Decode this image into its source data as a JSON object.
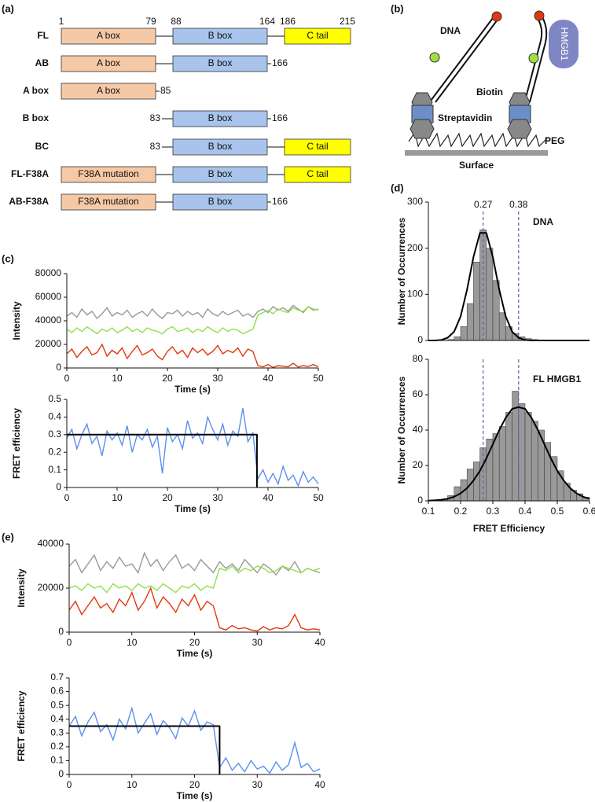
{
  "panel_labels": [
    "(a)",
    "(b)",
    "(c)",
    "(d)",
    "(e)"
  ],
  "domain_diagram": {
    "rows": [
      {
        "label": "FL",
        "a": "A box",
        "b": "B box",
        "c": "C tail",
        "top": [
          "1",
          "79",
          "88",
          "164",
          "186",
          "215"
        ]
      },
      {
        "label": "AB",
        "a": "A box",
        "b": "B box",
        "right": "166"
      },
      {
        "label": "A box",
        "a": "A box",
        "right": "85"
      },
      {
        "label": "B box",
        "left": "83",
        "b": "B box",
        "right": "166"
      },
      {
        "label": "BC",
        "left": "83",
        "b": "B box",
        "c": "C tail"
      },
      {
        "label": "FL-F38A",
        "a": "F38A mutation",
        "b": "B box",
        "c": "C tail"
      },
      {
        "label": "AB-F38A",
        "a": "F38A mutation",
        "b": "B box",
        "right": "166"
      }
    ]
  },
  "schematic": {
    "dna": "DNA",
    "protein": "HMGB1",
    "biotin": "Biotin",
    "streptavidin": "Streptavidin",
    "peg": "PEG",
    "surface": "Surface"
  },
  "chart_data": [
    {
      "type": "line",
      "ylabel": "Intensity",
      "xlabel": "Time (s)",
      "xlim": [
        0,
        50
      ],
      "xticks": [
        0,
        10,
        20,
        30,
        40,
        50
      ],
      "ylim": [
        0,
        80000
      ],
      "yticks": [
        0,
        20000,
        40000,
        60000,
        80000
      ],
      "x": [
        0,
        1,
        2,
        3,
        4,
        5,
        6,
        7,
        8,
        9,
        10,
        11,
        12,
        13,
        14,
        15,
        16,
        17,
        18,
        19,
        20,
        21,
        22,
        23,
        24,
        25,
        26,
        27,
        28,
        29,
        30,
        31,
        32,
        33,
        34,
        35,
        36,
        37,
        38,
        39,
        40,
        41,
        42,
        43,
        44,
        45,
        46,
        47,
        48,
        49,
        50
      ],
      "series": [
        {
          "color": "#999999",
          "values": [
            44000,
            47000,
            43000,
            50000,
            45000,
            48000,
            42000,
            46000,
            51000,
            44000,
            47000,
            45000,
            49000,
            43000,
            46000,
            48000,
            44000,
            50000,
            45000,
            42000,
            47000,
            46000,
            49000,
            44000,
            48000,
            45000,
            47000,
            43000,
            50000,
            46000,
            44000,
            48000,
            45000,
            47000,
            49000,
            44000,
            46000,
            43000,
            48000,
            50000,
            47000,
            52000,
            49000,
            51000,
            48000,
            53000,
            50000,
            47000,
            52000,
            49000,
            50000
          ]
        },
        {
          "color": "#8ee04a",
          "values": [
            33000,
            30000,
            34000,
            31000,
            35000,
            32000,
            29000,
            33000,
            31000,
            34000,
            30000,
            32000,
            35000,
            31000,
            33000,
            30000,
            34000,
            32000,
            31000,
            29000,
            33000,
            35000,
            31000,
            32000,
            34000,
            30000,
            33000,
            31000,
            35000,
            32000,
            30000,
            34000,
            31000,
            33000,
            32000,
            29000,
            31000,
            33000,
            45000,
            47000,
            49000,
            46000,
            50000,
            48000,
            47000,
            51000,
            49000,
            48000,
            52000,
            50000,
            49000
          ]
        },
        {
          "color": "#e2380e",
          "values": [
            12000,
            16000,
            9000,
            14000,
            18000,
            11000,
            13000,
            20000,
            10000,
            15000,
            12000,
            17000,
            8000,
            14000,
            19000,
            11000,
            13000,
            16000,
            10000,
            7000,
            14000,
            18000,
            12000,
            15000,
            9000,
            17000,
            13000,
            16000,
            11000,
            14000,
            19000,
            12000,
            15000,
            13000,
            17000,
            10000,
            16000,
            14000,
            2000,
            1000,
            3000,
            500,
            2000,
            1500,
            1000,
            4000,
            800,
            2000,
            1200,
            3000,
            1000
          ]
        }
      ]
    },
    {
      "type": "line",
      "ylabel": "FRET efficiency",
      "xlabel": "Time (s)",
      "xlim": [
        0,
        50
      ],
      "xticks": [
        0,
        10,
        20,
        30,
        40,
        50
      ],
      "ylim": [
        0,
        0.5
      ],
      "yticks": [
        0,
        0.1,
        0.2,
        0.3,
        0.4,
        0.5
      ],
      "x": [
        0,
        1,
        2,
        3,
        4,
        5,
        6,
        7,
        8,
        9,
        10,
        11,
        12,
        13,
        14,
        15,
        16,
        17,
        18,
        19,
        20,
        21,
        22,
        23,
        24,
        25,
        26,
        27,
        28,
        29,
        30,
        31,
        32,
        33,
        34,
        35,
        36,
        37,
        38,
        39,
        40,
        41,
        42,
        43,
        44,
        45,
        46,
        47,
        48,
        49,
        50
      ],
      "series": [
        {
          "color": "#5b8ff0",
          "values": [
            0.28,
            0.33,
            0.22,
            0.3,
            0.36,
            0.25,
            0.29,
            0.18,
            0.32,
            0.27,
            0.31,
            0.24,
            0.35,
            0.2,
            0.3,
            0.27,
            0.33,
            0.23,
            0.29,
            0.08,
            0.34,
            0.26,
            0.3,
            0.22,
            0.38,
            0.28,
            0.31,
            0.25,
            0.4,
            0.33,
            0.27,
            0.36,
            0.24,
            0.32,
            0.29,
            0.45,
            0.26,
            0.31,
            0.05,
            0.1,
            0.03,
            0.08,
            0.02,
            0.12,
            0.04,
            0.07,
            0.01,
            0.09,
            0.03,
            0.06,
            0.02
          ]
        }
      ],
      "fit": {
        "color": "#000000",
        "x": [
          0,
          37.8,
          37.8
        ],
        "values": [
          0.3,
          0.3,
          0
        ]
      }
    },
    {
      "type": "histogram",
      "title": "DNA",
      "ylabel": "Number of Occurrences",
      "xlim": [
        0.1,
        0.6
      ],
      "ylim": [
        0,
        300
      ],
      "yticks": [
        0,
        100,
        200,
        300
      ],
      "color": "#999999",
      "bins": [
        0.1,
        0.12,
        0.14,
        0.16,
        0.18,
        0.2,
        0.22,
        0.24,
        0.26,
        0.28,
        0.3,
        0.32,
        0.34,
        0.36,
        0.38,
        0.4,
        0.42,
        0.44,
        0.46,
        0.48,
        0.5,
        0.52,
        0.54,
        0.56,
        0.58,
        0.6
      ],
      "counts": [
        0,
        0,
        0,
        2,
        8,
        30,
        80,
        170,
        240,
        200,
        130,
        60,
        30,
        15,
        8,
        4,
        2,
        0,
        0,
        0,
        0,
        0,
        0,
        0,
        0
      ],
      "fit": {
        "color": "#000000",
        "x": [
          0.1,
          0.12,
          0.14,
          0.16,
          0.18,
          0.2,
          0.22,
          0.24,
          0.26,
          0.28,
          0.3,
          0.32,
          0.34,
          0.36,
          0.38,
          0.4,
          0.42,
          0.44,
          0.46,
          0.48,
          0.5,
          0.52,
          0.54,
          0.56,
          0.58,
          0.6
        ],
        "values": [
          0,
          0,
          1,
          6,
          19,
          52,
          110,
          181,
          233,
          233,
          181,
          110,
          52,
          19,
          6,
          1,
          0,
          0,
          0,
          0,
          0,
          0,
          0,
          0,
          0,
          0
        ]
      },
      "markers": [
        0.27,
        0.38
      ]
    },
    {
      "type": "histogram",
      "title": "FL HMGB1",
      "ylabel": "Number of Occurrences",
      "xlabel": "FRET Efficiency",
      "xlim": [
        0.1,
        0.6
      ],
      "xticks": [
        0.1,
        0.2,
        0.3,
        0.4,
        0.5,
        0.6
      ],
      "ylim": [
        0,
        80
      ],
      "yticks": [
        0,
        20,
        40,
        60,
        80
      ],
      "color": "#999999",
      "bins": [
        0.1,
        0.12,
        0.14,
        0.16,
        0.18,
        0.2,
        0.22,
        0.24,
        0.26,
        0.28,
        0.3,
        0.32,
        0.34,
        0.36,
        0.38,
        0.4,
        0.42,
        0.44,
        0.46,
        0.48,
        0.5,
        0.52,
        0.54,
        0.56,
        0.58,
        0.6
      ],
      "counts": [
        0,
        0,
        1,
        3,
        8,
        12,
        18,
        22,
        30,
        35,
        38,
        42,
        50,
        62,
        55,
        50,
        45,
        40,
        33,
        25,
        17,
        10,
        6,
        4,
        2
      ],
      "fit": {
        "color": "#000000",
        "x": [
          0.1,
          0.12,
          0.14,
          0.16,
          0.18,
          0.2,
          0.22,
          0.24,
          0.26,
          0.28,
          0.3,
          0.32,
          0.34,
          0.36,
          0.38,
          0.4,
          0.42,
          0.44,
          0.46,
          0.48,
          0.5,
          0.52,
          0.54,
          0.56,
          0.58,
          0.6
        ],
        "values": [
          0.1,
          0.3,
          0.6,
          1.2,
          2.3,
          4.2,
          7.2,
          11.5,
          17,
          24,
          32,
          40,
          47,
          52,
          53,
          52,
          47,
          40,
          32,
          24,
          17,
          11.5,
          7.2,
          4.2,
          2.3,
          1.2
        ]
      }
    },
    {
      "type": "line",
      "ylabel": "Intensity",
      "xlabel": "Time (s)",
      "xlim": [
        0,
        40
      ],
      "xticks": [
        0,
        10,
        20,
        30,
        40
      ],
      "ylim": [
        0,
        40000
      ],
      "yticks": [
        0,
        20000,
        40000
      ],
      "x": [
        0,
        1,
        2,
        3,
        4,
        5,
        6,
        7,
        8,
        9,
        10,
        11,
        12,
        13,
        14,
        15,
        16,
        17,
        18,
        19,
        20,
        21,
        22,
        23,
        24,
        25,
        26,
        27,
        28,
        29,
        30,
        31,
        32,
        33,
        34,
        35,
        36,
        37,
        38,
        39,
        40
      ],
      "series": [
        {
          "color": "#999999",
          "values": [
            30000,
            33000,
            27000,
            31000,
            35000,
            28000,
            32000,
            29000,
            34000,
            30000,
            31000,
            27000,
            36000,
            30000,
            33000,
            28000,
            32000,
            35000,
            29000,
            31000,
            28000,
            33000,
            30000,
            27000,
            32000,
            29000,
            31000,
            28000,
            33000,
            30000,
            27000,
            31000,
            29000,
            26000,
            30000,
            28000,
            32000,
            27000,
            29000,
            28000,
            27000
          ]
        },
        {
          "color": "#8ee04a",
          "values": [
            20000,
            21000,
            19000,
            22000,
            20000,
            21000,
            18000,
            22000,
            20000,
            21000,
            19000,
            22000,
            20000,
            21000,
            19000,
            22000,
            20000,
            18000,
            21000,
            20000,
            22000,
            19000,
            21000,
            20000,
            29000,
            28000,
            30000,
            27000,
            29000,
            28000,
            30000,
            29000,
            27000,
            28000,
            30000,
            29000,
            28000,
            27000,
            29000,
            28000,
            29000
          ]
        },
        {
          "color": "#e2380e",
          "values": [
            10000,
            14000,
            8000,
            12000,
            16000,
            11000,
            13000,
            9000,
            15000,
            12000,
            18000,
            10000,
            14000,
            20000,
            11000,
            16000,
            13000,
            9000,
            15000,
            12000,
            17000,
            10000,
            14000,
            12000,
            2000,
            1000,
            3000,
            1500,
            2000,
            1000,
            500,
            2500,
            1000,
            2000,
            1500,
            3000,
            8000,
            2000,
            1000,
            1500,
            1000
          ]
        }
      ]
    },
    {
      "type": "line",
      "ylabel": "FRET efficiency",
      "xlabel": "Time (s)",
      "xlim": [
        0,
        40
      ],
      "xticks": [
        0,
        10,
        20,
        30,
        40
      ],
      "ylim": [
        0,
        0.7
      ],
      "yticks": [
        0,
        0.1,
        0.2,
        0.3,
        0.4,
        0.5,
        0.6,
        0.7
      ],
      "x": [
        0,
        1,
        2,
        3,
        4,
        5,
        6,
        7,
        8,
        9,
        10,
        11,
        12,
        13,
        14,
        15,
        16,
        17,
        18,
        19,
        20,
        21,
        22,
        23,
        24,
        25,
        26,
        27,
        28,
        29,
        30,
        31,
        32,
        33,
        34,
        35,
        36,
        37,
        38,
        39,
        40
      ],
      "series": [
        {
          "color": "#5b8ff0",
          "values": [
            0.35,
            0.42,
            0.28,
            0.38,
            0.45,
            0.31,
            0.36,
            0.25,
            0.4,
            0.33,
            0.48,
            0.3,
            0.37,
            0.44,
            0.29,
            0.39,
            0.34,
            0.26,
            0.41,
            0.35,
            0.46,
            0.32,
            0.38,
            0.36,
            0.05,
            0.12,
            0.03,
            0.08,
            0.02,
            0.1,
            0.04,
            0.06,
            0.01,
            0.09,
            0.03,
            0.07,
            0.23,
            0.05,
            0.08,
            0.02,
            0.04
          ]
        }
      ],
      "fit": {
        "color": "#000000",
        "x": [
          0,
          24,
          24
        ],
        "values": [
          0.35,
          0.35,
          0
        ]
      }
    }
  ]
}
